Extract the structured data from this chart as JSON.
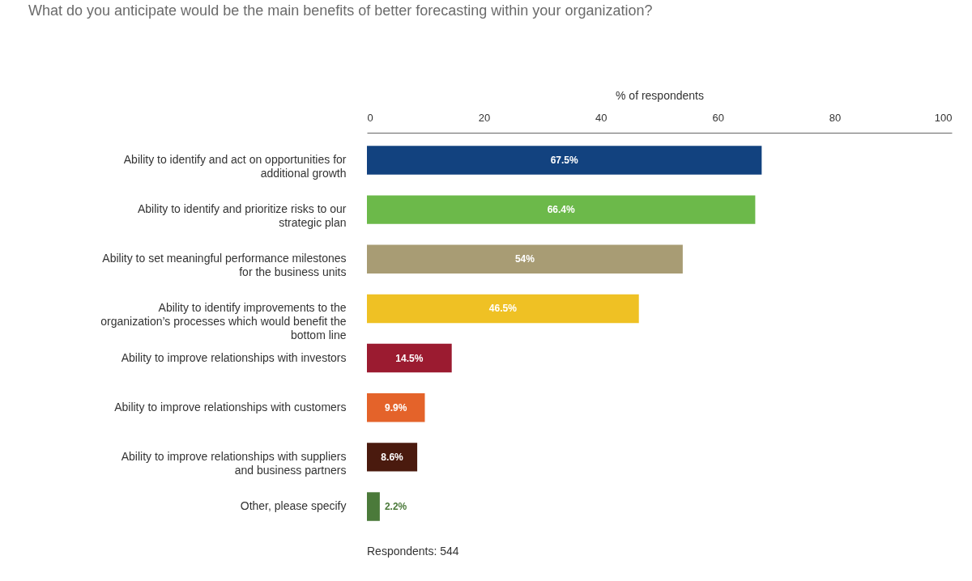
{
  "chart_data": {
    "type": "bar",
    "orientation": "horizontal",
    "title": "What do you anticipate would be the main benefits of better forecasting within your organization?",
    "xlabel": "% of respondents",
    "categories": [
      "Ability to identify and act on opportunities for additional growth",
      "Ability to identify and prioritize risks to our strategic plan",
      "Ability to set meaningful performance milestones for the business units",
      "Ability to identify improvements to the organization’s processes which would benefit the bottom line",
      "Ability to improve relationships with investors",
      "Ability to improve relationships with customers",
      "Ability to improve relationships with suppliers and business partners",
      "Other, please specify"
    ],
    "values": [
      67.5,
      66.4,
      54,
      46.5,
      14.5,
      9.9,
      8.6,
      2.2
    ],
    "value_labels": [
      "67.5%",
      "66.4%",
      "54%",
      "46.5%",
      "14.5%",
      "9.9%",
      "8.6%",
      "2.2%"
    ],
    "colors": [
      "#12427f",
      "#6cb94a",
      "#a89c74",
      "#efc124",
      "#9b1b30",
      "#e4632a",
      "#4a1a0e",
      "#4b7a3a"
    ],
    "xlim": [
      0,
      100
    ],
    "xticks": [
      0,
      20,
      40,
      60,
      80,
      100
    ],
    "grid": false,
    "annotations": [
      "Respondents: 544"
    ]
  }
}
